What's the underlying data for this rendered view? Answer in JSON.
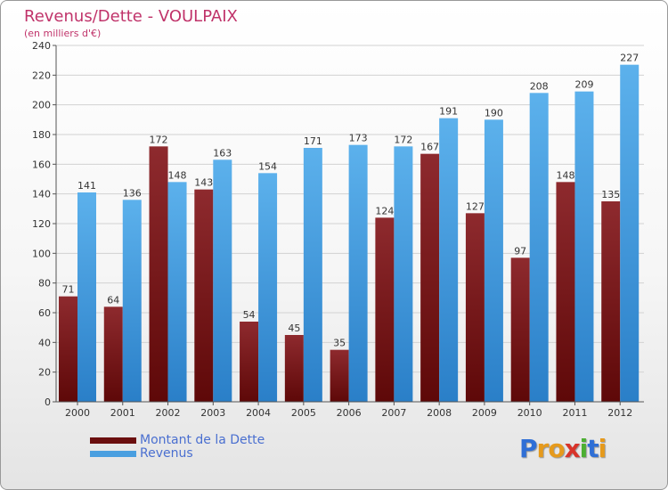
{
  "chart_data": {
    "type": "bar",
    "title": "Revenus/Dette - VOULPAIX",
    "subtitle": "(en milliers d'€)",
    "categories": [
      "2000",
      "2001",
      "2002",
      "2003",
      "2004",
      "2005",
      "2006",
      "2007",
      "2008",
      "2009",
      "2010",
      "2011",
      "2012"
    ],
    "series": [
      {
        "name": "Montant de la Dette",
        "color": "#7a1616",
        "values": [
          71,
          64,
          172,
          143,
          54,
          45,
          35,
          124,
          167,
          127,
          97,
          148,
          135
        ]
      },
      {
        "name": "Revenus",
        "color": "#4a9fe0",
        "values": [
          141,
          136,
          148,
          163,
          154,
          171,
          173,
          172,
          191,
          190,
          208,
          209,
          227
        ]
      }
    ],
    "ylim": [
      0,
      240
    ],
    "yticks": [
      0,
      20,
      40,
      60,
      80,
      100,
      120,
      140,
      160,
      180,
      200,
      220,
      240
    ],
    "grid": true,
    "legend": "bottom-left",
    "xlabel": "",
    "ylabel": ""
  },
  "legend": {
    "debt_label": "Montant de la Dette",
    "revenue_label": "Revenus",
    "debt_color": "#6b0f0f",
    "revenue_color": "#4a9fe0"
  },
  "brand": {
    "letters": [
      "P",
      "r",
      "o",
      "x",
      "i",
      "t",
      "i"
    ],
    "colors": [
      "#2f6fd6",
      "#e69a1c",
      "#e69a1c",
      "#d8342a",
      "#4caf32",
      "#2f6fd6",
      "#e69a1c"
    ]
  }
}
